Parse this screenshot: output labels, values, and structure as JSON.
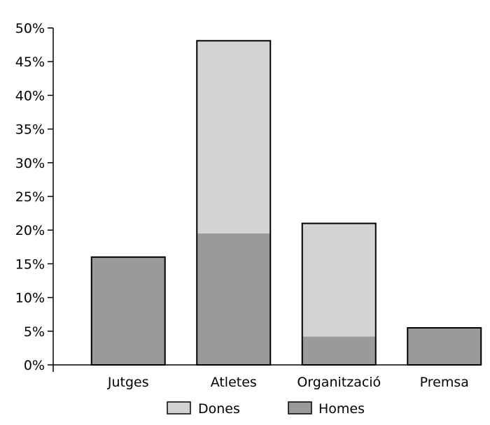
{
  "chart_data": {
    "type": "bar",
    "stacked": true,
    "categories": [
      "Jutges",
      "Atletes",
      "Organització",
      "Premsa"
    ],
    "series": [
      {
        "name": "Homes",
        "values": [
          16,
          19.5,
          4.2,
          5.5
        ]
      },
      {
        "name": "Dones",
        "values": [
          0,
          28.6,
          16.8,
          0
        ]
      }
    ],
    "ylim": [
      0,
      50
    ],
    "yticks": [
      "0%",
      "5%",
      "10%",
      "15%",
      "20%",
      "25%",
      "30%",
      "35%",
      "40%",
      "45%",
      "50%"
    ],
    "legend_position": "bottom-center",
    "grid": false,
    "colors": {
      "Homes": "#9a9a9a",
      "Dones": "#d3d3d3",
      "outline": "#000000"
    }
  }
}
